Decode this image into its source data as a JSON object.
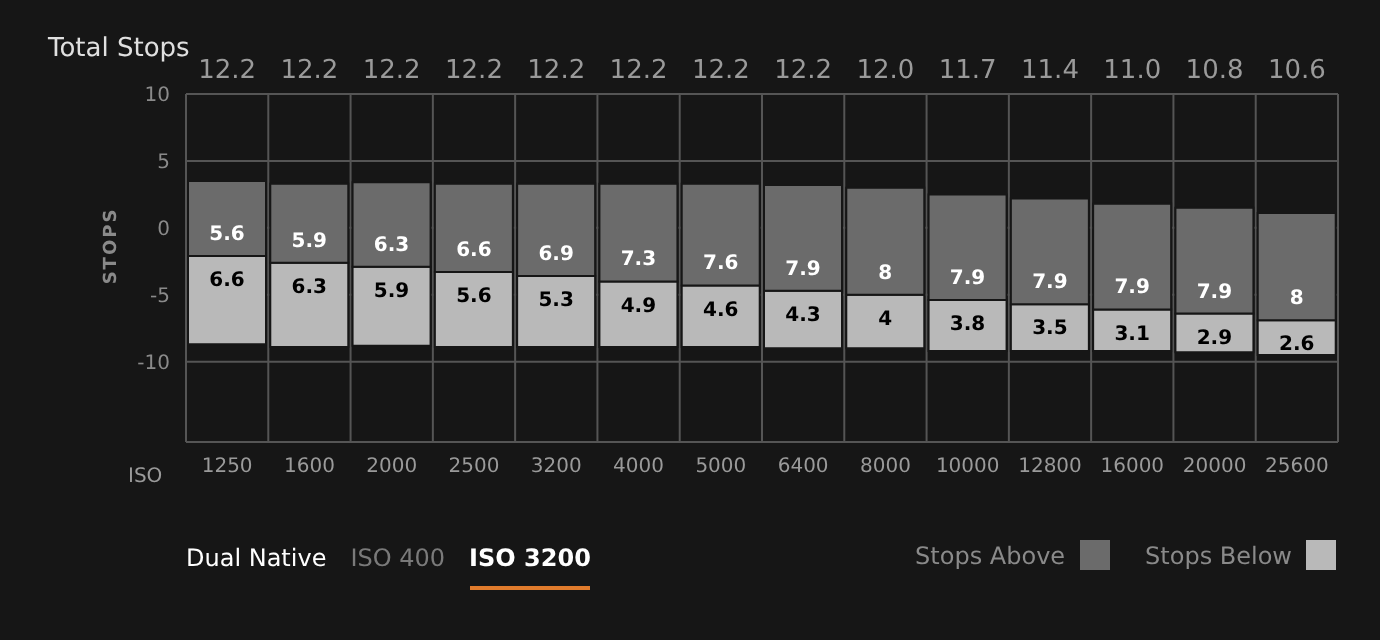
{
  "chart_data": {
    "type": "bar",
    "ylabel": "STOPS",
    "xlabel": "ISO",
    "categories": [
      "1250",
      "1600",
      "2000",
      "2500",
      "3200",
      "4000",
      "5000",
      "6400",
      "8000",
      "10000",
      "12800",
      "16000",
      "20000",
      "25600"
    ],
    "series": [
      {
        "name": "Stops Below",
        "color": "#b9b9b9",
        "base": [
          -8.7,
          -8.9,
          -8.8,
          -8.9,
          -8.9,
          -8.9,
          -8.9,
          -9.0,
          -9.0,
          -9.2,
          -9.2,
          -9.2,
          -9.3,
          -9.5
        ],
        "values": [
          6.6,
          6.3,
          5.9,
          5.6,
          5.3,
          4.9,
          4.6,
          4.3,
          4,
          3.8,
          3.5,
          3.1,
          2.9,
          2.6
        ]
      },
      {
        "name": "Stops Above",
        "color": "#6b6b6b",
        "base": [
          -2.1,
          -2.6,
          -2.9,
          -3.3,
          -3.6,
          -4.0,
          -4.3,
          -4.7,
          -5.0,
          -5.4,
          -5.7,
          -6.1,
          -6.4,
          -6.9
        ],
        "values": [
          5.6,
          5.9,
          6.3,
          6.6,
          6.9,
          7.3,
          7.6,
          7.9,
          8,
          7.9,
          7.9,
          7.9,
          7.9,
          8
        ]
      }
    ],
    "data_labels": true,
    "ylim": [
      -16,
      10
    ],
    "yticks": [
      -10,
      -5,
      0,
      5,
      10
    ],
    "grid": true,
    "legend": "bottom right",
    "annotations": [
      "Total Stops",
      "Dual Native",
      "ISO 400",
      "ISO 3200",
      "12.2",
      "12.2",
      "12.2",
      "12.2",
      "12.2",
      "12.2",
      "12.2",
      "12.2",
      "12.0",
      "11.7",
      "11.4",
      "11.0",
      "10.8",
      "10.6"
    ]
  }
}
